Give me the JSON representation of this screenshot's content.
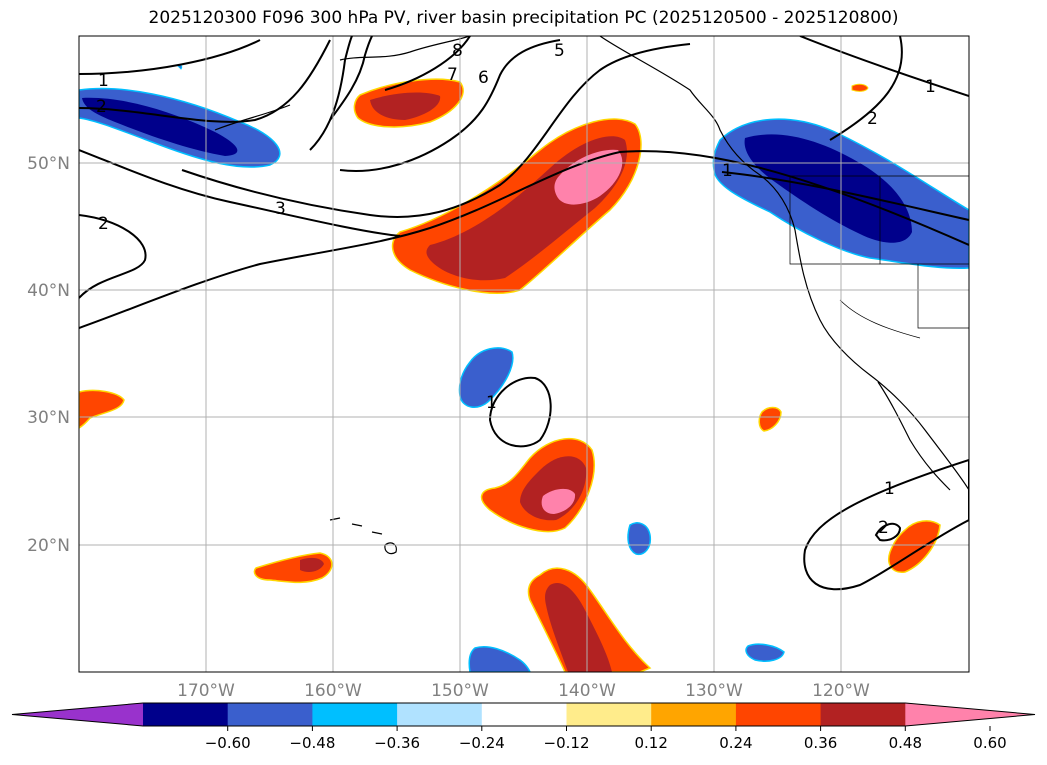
{
  "title": "2025120300 F096 300 hPa PV, river basin precipitation PC (2025120500 - 2025120800)",
  "lat_labels": [
    "50°N",
    "40°N",
    "30°N",
    "20°N"
  ],
  "lon_labels": [
    "170°W",
    "160°W",
    "150°W",
    "140°W",
    "130°W",
    "120°W"
  ],
  "contour_labels": [
    "1",
    "2",
    "2",
    "3",
    "5",
    "6",
    "7",
    "8",
    "1",
    "1",
    "2",
    "1",
    "2",
    "1"
  ],
  "colorbar": {
    "tick_labels": [
      "−0.60",
      "−0.48",
      "−0.36",
      "−0.24",
      "−0.12",
      "0.12",
      "0.24",
      "0.36",
      "0.48",
      "0.60"
    ],
    "colors": [
      "#9932cc",
      "#00008b",
      "#3a5fcd",
      "#00bfff",
      "#b0e2ff",
      "#ffffff",
      "#ffec8b",
      "#ffa500",
      "#ff4500",
      "#b22222",
      "#ff82ab"
    ]
  },
  "axes": {
    "lon_range": [
      -180,
      -110
    ],
    "lat_range": [
      10,
      60
    ],
    "grid": true,
    "label_color": "#808080"
  }
}
